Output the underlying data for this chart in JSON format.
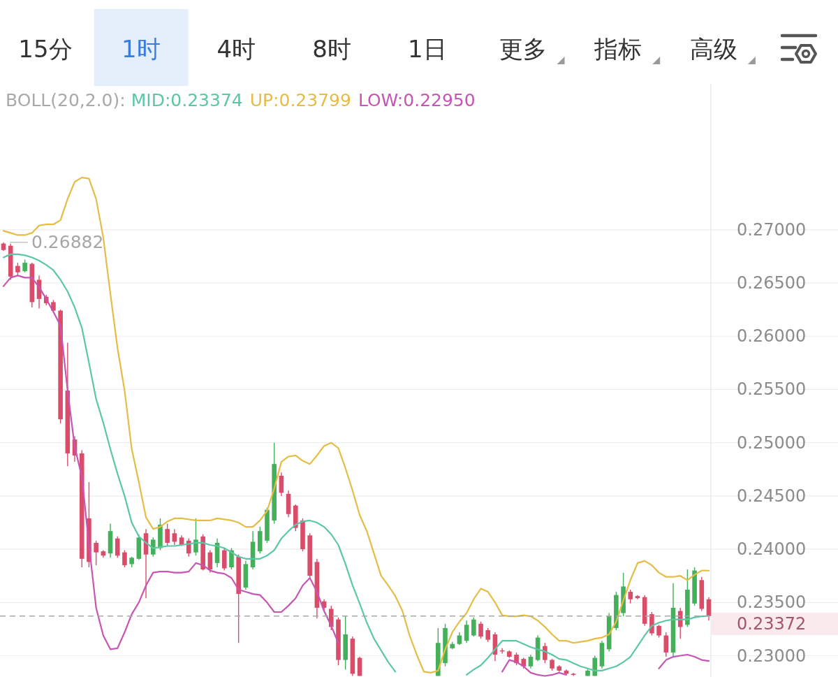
{
  "chart_data": {
    "type": "candlestick",
    "annotations": [
      "15分",
      "1时",
      "4时",
      "8时",
      "1日",
      "更多",
      "指标",
      "高级",
      "0.26882",
      "0.23372"
    ],
    "legend_title": "BOLL(20,2.0):",
    "legend": "top left",
    "grid": "y",
    "tick_labels": "y",
    "ylim": [
      0.228,
      0.2837
    ],
    "yticks": [
      {
        "value": 0.23,
        "label": "0.23000"
      },
      {
        "value": 0.235,
        "label": "0.23500"
      },
      {
        "value": 0.24,
        "label": "0.24000"
      },
      {
        "value": 0.245,
        "label": "0.24500"
      },
      {
        "value": 0.25,
        "label": "0.25000"
      },
      {
        "value": 0.255,
        "label": "0.25500"
      },
      {
        "value": 0.26,
        "label": "0.26000"
      },
      {
        "value": 0.265,
        "label": "0.26500"
      },
      {
        "value": 0.27,
        "label": "0.27000"
      }
    ],
    "ref_lines": [
      {
        "axis": "y",
        "value": 0.23372,
        "color": "#a8a8a8",
        "line_style": "dashed"
      }
    ],
    "categories": [
      null,
      null,
      null,
      null,
      null,
      null,
      null,
      null,
      null,
      null,
      null,
      null,
      null,
      null,
      null,
      null,
      null,
      null,
      null,
      null,
      null,
      null,
      null,
      null,
      null,
      null,
      null,
      null,
      null,
      null,
      null,
      null,
      null,
      null,
      null,
      null,
      null,
      null,
      null,
      null,
      null,
      null,
      null,
      null,
      null,
      null,
      null,
      null,
      null,
      null,
      null,
      null,
      null,
      null,
      null,
      null,
      null,
      null,
      null,
      null,
      null,
      null,
      null,
      null,
      null,
      null,
      null,
      null,
      null,
      null,
      null,
      null,
      null,
      null,
      null,
      null,
      null,
      null,
      null,
      null,
      null,
      null,
      null,
      null,
      null,
      null,
      null,
      null,
      null,
      null,
      null,
      null,
      null,
      null,
      null,
      null,
      null,
      null,
      null,
      null
    ],
    "ohlc": [
      [
        0.2687,
        0.26882,
        0.268,
        0.2681
      ],
      [
        0.2685,
        0.2687,
        0.2653,
        0.2656
      ],
      [
        0.2666,
        0.2669,
        0.2657,
        0.266
      ],
      [
        0.2661,
        0.2672,
        0.266,
        0.2669
      ],
      [
        0.2668,
        0.2669,
        0.2627,
        0.2632
      ],
      [
        0.2653,
        0.2657,
        0.2626,
        0.2635
      ],
      [
        0.2637,
        0.2639,
        0.2629,
        0.2631
      ],
      [
        0.2632,
        0.2634,
        0.2622,
        0.2624
      ],
      [
        0.2624,
        0.2625,
        0.2518,
        0.2522
      ],
      [
        0.2549,
        0.2594,
        0.2478,
        0.249
      ],
      [
        0.2503,
        0.2506,
        0.2482,
        0.2488
      ],
      [
        0.249,
        0.2493,
        0.2383,
        0.2391
      ],
      [
        0.2429,
        0.2463,
        0.2383,
        0.2388
      ],
      [
        0.2406,
        0.2408,
        0.2385,
        0.2397
      ],
      [
        0.2398,
        0.2399,
        0.2392,
        0.2394
      ],
      [
        0.2396,
        0.2424,
        0.2392,
        0.2417
      ],
      [
        0.241,
        0.2412,
        0.2392,
        0.2394
      ],
      [
        0.2397,
        0.2399,
        0.2383,
        0.2385
      ],
      [
        0.2386,
        0.2393,
        0.2383,
        0.2392
      ],
      [
        0.2391,
        0.2414,
        0.239,
        0.2411
      ],
      [
        0.2415,
        0.2419,
        0.2354,
        0.2395
      ],
      [
        0.2395,
        0.2411,
        0.2393,
        0.2409
      ],
      [
        0.2401,
        0.2429,
        0.2399,
        0.2423
      ],
      [
        0.2419,
        0.2424,
        0.2403,
        0.2406
      ],
      [
        0.2415,
        0.2419,
        0.2404,
        0.2407
      ],
      [
        0.2411,
        0.2413,
        0.2403,
        0.2404
      ],
      [
        0.2408,
        0.241,
        0.2393,
        0.2396
      ],
      [
        0.2397,
        0.2429,
        0.2394,
        0.2409
      ],
      [
        0.2412,
        0.2414,
        0.238,
        0.2381
      ],
      [
        0.2397,
        0.2399,
        0.2378,
        0.2381
      ],
      [
        0.2387,
        0.241,
        0.2383,
        0.2406
      ],
      [
        0.2399,
        0.2401,
        0.238,
        0.2382
      ],
      [
        0.2383,
        0.2401,
        0.2381,
        0.2399
      ],
      [
        0.2393,
        0.2395,
        0.2312,
        0.2358
      ],
      [
        0.2364,
        0.2389,
        0.2362,
        0.2386
      ],
      [
        0.2383,
        0.2417,
        0.2381,
        0.2407
      ],
      [
        0.2398,
        0.2421,
        0.2396,
        0.2417
      ],
      [
        0.2408,
        0.2439,
        0.2406,
        0.2437
      ],
      [
        0.2427,
        0.25,
        0.2424,
        0.248
      ],
      [
        0.2469,
        0.2472,
        0.245,
        0.2453
      ],
      [
        0.2452,
        0.2455,
        0.243,
        0.2433
      ],
      [
        0.2441,
        0.2442,
        0.2417,
        0.242
      ],
      [
        0.2427,
        0.2429,
        0.2398,
        0.24
      ],
      [
        0.2413,
        0.2415,
        0.2373,
        0.2375
      ],
      [
        0.2388,
        0.2391,
        0.2335,
        0.2345
      ],
      [
        0.2351,
        0.2353,
        0.2342,
        0.2345
      ],
      [
        0.2344,
        0.2347,
        0.2324,
        0.2327
      ],
      [
        0.2334,
        0.2336,
        0.2291,
        0.2296
      ],
      [
        0.2296,
        0.2337,
        0.2287,
        0.232
      ],
      [
        0.2316,
        0.2318,
        0.2281,
        0.2283
      ],
      [
        0.2298,
        0.2299,
        0.2281,
        0.2281
      ],
      null,
      null,
      null,
      null,
      null,
      null,
      null,
      null,
      null,
      null,
      [
        0.2281,
        0.2326,
        0.2281,
        0.2312
      ],
      [
        0.2293,
        0.233,
        0.229,
        0.2326
      ],
      [
        0.2307,
        0.2313,
        0.2306,
        0.2311
      ],
      [
        0.2311,
        0.2322,
        0.231,
        0.2319
      ],
      [
        0.2314,
        0.2333,
        0.2312,
        0.2329
      ],
      [
        0.2319,
        0.2336,
        0.2318,
        0.2334
      ],
      [
        0.233,
        0.2332,
        0.2316,
        0.2318
      ],
      [
        0.2324,
        0.2326,
        0.2313,
        0.2315
      ],
      [
        0.232,
        0.2322,
        0.2295,
        0.2301
      ],
      [
        0.2305,
        0.2307,
        0.2302,
        0.2304
      ],
      [
        0.2304,
        0.2305,
        0.2298,
        0.2299
      ],
      [
        0.2301,
        0.2303,
        0.2291,
        0.2293
      ],
      [
        0.2297,
        0.2298,
        0.2288,
        0.229
      ],
      [
        0.229,
        0.2301,
        0.2288,
        0.2299
      ],
      [
        0.2296,
        0.2319,
        0.2295,
        0.2317
      ],
      [
        0.2309,
        0.2312,
        0.2293,
        0.2296
      ],
      [
        0.2296,
        0.2297,
        0.2286,
        0.2288
      ],
      [
        0.229,
        0.2291,
        0.2285,
        0.2286
      ],
      [
        0.2286,
        0.2287,
        0.2282,
        0.2283
      ],
      [
        0.2283,
        0.2284,
        0.2281,
        0.2282
      ],
      null,
      [
        0.2281,
        0.2288,
        0.2281,
        0.2286
      ],
      [
        0.2281,
        0.23,
        0.2281,
        0.2298
      ],
      [
        0.229,
        0.2314,
        0.2288,
        0.2312
      ],
      [
        0.2306,
        0.234,
        0.2304,
        0.2337
      ],
      [
        0.2326,
        0.236,
        0.2324,
        0.2357
      ],
      [
        0.234,
        0.2378,
        0.2337,
        0.2365
      ],
      [
        0.236,
        0.2362,
        0.2349,
        0.2353
      ],
      [
        0.2356,
        0.2357,
        0.2353,
        0.2354
      ],
      [
        0.2355,
        0.2357,
        0.2328,
        0.233
      ],
      [
        0.2339,
        0.2341,
        0.2319,
        0.2321
      ],
      [
        0.2328,
        0.2329,
        0.2317,
        0.2319
      ],
      [
        0.2319,
        0.2322,
        0.2299,
        0.2303
      ],
      [
        0.2303,
        0.2368,
        0.2299,
        0.2345
      ],
      [
        0.2342,
        0.2345,
        0.2316,
        0.2327
      ],
      [
        0.2329,
        0.2381,
        0.2327,
        0.2362
      ],
      [
        0.2349,
        0.2383,
        0.2347,
        0.238
      ],
      [
        0.2371,
        0.2374,
        0.2342,
        0.2344
      ],
      [
        0.2353,
        0.2355,
        0.2333,
        0.23372
      ]
    ],
    "colors": [
      "#d94c6a",
      "#d94c6a",
      "#d94c6a",
      "#45b05a",
      "#d94c6a",
      "#d94c6a",
      "#d94c6a",
      "#d94c6a",
      "#d94c6a",
      "#d94c6a",
      "#d94c6a",
      "#d94c6a",
      "#d94c6a",
      "#d94c6a",
      "#d94c6a",
      "#45b05a",
      "#d94c6a",
      "#d94c6a",
      "#45b05a",
      "#45b05a",
      "#d94c6a",
      "#45b05a",
      "#45b05a",
      "#d94c6a",
      "#d94c6a",
      "#d94c6a",
      "#d94c6a",
      "#45b05a",
      "#d94c6a",
      "#d94c6a",
      "#45b05a",
      "#d94c6a",
      "#45b05a",
      "#d94c6a",
      "#45b05a",
      "#45b05a",
      "#45b05a",
      "#45b05a",
      "#45b05a",
      "#d94c6a",
      "#d94c6a",
      "#d94c6a",
      "#d94c6a",
      "#d94c6a",
      "#d94c6a",
      "#d94c6a",
      "#d94c6a",
      "#d94c6a",
      "#45b05a",
      "#d94c6a",
      "#d94c6a",
      null,
      null,
      null,
      null,
      null,
      null,
      null,
      null,
      null,
      null,
      "#45b05a",
      "#45b05a",
      "#45b05a",
      "#45b05a",
      "#45b05a",
      "#45b05a",
      "#d94c6a",
      "#d94c6a",
      "#d94c6a",
      "#d94c6a",
      "#d94c6a",
      "#d94c6a",
      "#d94c6a",
      "#45b05a",
      "#45b05a",
      "#d94c6a",
      "#d94c6a",
      "#d94c6a",
      "#d94c6a",
      "#d94c6a",
      null,
      "#45b05a",
      "#45b05a",
      "#45b05a",
      "#45b05a",
      "#45b05a",
      "#45b05a",
      "#d94c6a",
      "#d94c6a",
      "#d94c6a",
      "#d94c6a",
      "#d94c6a",
      "#d94c6a",
      "#45b05a",
      "#d94c6a",
      "#45b05a",
      "#45b05a",
      "#d94c6a",
      "#d94c6a"
    ],
    "series": [
      {
        "name": "MID:0.23374",
        "type": "line",
        "color": "#5cc7a7",
        "values": [
          0.2674,
          0.2677,
          0.2677,
          0.2676,
          0.2674,
          0.2671,
          0.2667,
          0.2662,
          0.2653,
          0.2642,
          0.2627,
          0.2608,
          0.2575,
          0.2541,
          0.2519,
          0.2494,
          0.2471,
          0.245,
          0.2425,
          0.2412,
          0.2406,
          0.2401,
          0.2402,
          0.2403,
          0.2403,
          0.2404,
          0.2405,
          0.2406,
          0.2406,
          0.2404,
          0.2403,
          0.2401,
          0.2397,
          0.2393,
          0.2391,
          0.2391,
          0.2391,
          0.2394,
          0.2399,
          0.241,
          0.2417,
          0.2423,
          0.2426,
          0.2427,
          0.2425,
          0.2421,
          0.2414,
          0.2404,
          0.2386,
          0.2366,
          0.2349,
          0.2331,
          0.2316,
          0.2305,
          0.2294,
          0.2285,
          null,
          null,
          null,
          null,
          null,
          null,
          null,
          null,
          null,
          0.2282,
          0.2287,
          0.2291,
          0.2298,
          0.2306,
          0.2314,
          0.2314,
          0.2314,
          0.2311,
          0.2308,
          0.2306,
          0.2304,
          0.2301,
          0.2297,
          0.2296,
          0.2293,
          0.229,
          0.2288,
          0.2286,
          0.2286,
          0.2288,
          0.229,
          0.2294,
          0.2299,
          0.2309,
          0.2319,
          0.2328,
          0.2331,
          0.2333,
          0.2334,
          0.2334,
          0.2334,
          0.2336,
          0.2337,
          0.23374
        ]
      },
      {
        "name": "UP:0.23799",
        "type": "line",
        "color": "#e5bd45",
        "values": [
          0.2699,
          0.2697,
          0.2695,
          0.2695,
          0.2697,
          0.2704,
          0.2705,
          0.2705,
          0.2709,
          0.2729,
          0.2745,
          0.2749,
          0.2748,
          0.2729,
          0.2693,
          0.264,
          0.2589,
          0.2549,
          0.2494,
          0.2463,
          0.243,
          0.2419,
          0.2421,
          0.2426,
          0.2429,
          0.2429,
          0.2428,
          0.2427,
          0.2427,
          0.2427,
          0.2429,
          0.2428,
          0.2427,
          0.2425,
          0.2421,
          0.2421,
          0.2427,
          0.2436,
          0.2457,
          0.2482,
          0.2487,
          0.2488,
          0.2483,
          0.248,
          0.2488,
          0.2497,
          0.25,
          0.2495,
          0.2476,
          0.2455,
          0.2432,
          0.2417,
          0.2396,
          0.2375,
          0.2366,
          0.2356,
          0.2342,
          0.2319,
          0.2301,
          0.2285,
          0.2284,
          0.2286,
          0.2306,
          0.2322,
          0.2332,
          0.234,
          0.2353,
          0.2363,
          0.236,
          0.235,
          0.2338,
          0.2337,
          0.2337,
          0.2338,
          0.2337,
          0.2333,
          0.2327,
          0.232,
          0.2314,
          0.2314,
          0.2312,
          0.2313,
          0.2314,
          0.2316,
          0.2317,
          0.232,
          0.2332,
          0.2352,
          0.2371,
          0.2387,
          0.2389,
          0.2385,
          0.2378,
          0.2374,
          0.2374,
          0.2375,
          0.2371,
          0.2376,
          0.238,
          0.23799
        ]
      },
      {
        "name": "LOW:0.22950",
        "type": "line",
        "color": "#c655b3",
        "values": [
          0.2647,
          0.2655,
          0.2657,
          0.2655,
          0.2655,
          0.2646,
          0.2635,
          0.2623,
          0.261,
          0.2549,
          0.2496,
          0.2468,
          0.2404,
          0.2345,
          0.2319,
          0.2306,
          0.2307,
          0.2322,
          0.2339,
          0.235,
          0.2366,
          0.2378,
          0.2379,
          0.2379,
          0.2378,
          0.2378,
          0.2379,
          0.2387,
          0.2385,
          0.238,
          0.2378,
          0.2377,
          0.2373,
          0.2362,
          0.236,
          0.2358,
          0.2357,
          0.235,
          0.2341,
          0.2341,
          0.2347,
          0.2354,
          0.2366,
          0.2373,
          0.236,
          0.2342,
          0.2328,
          0.2312,
          null,
          null,
          null,
          null,
          null,
          null,
          null,
          null,
          null,
          null,
          null,
          null,
          null,
          null,
          null,
          null,
          null,
          null,
          null,
          null,
          null,
          null,
          0.2285,
          0.2296,
          0.2294,
          0.229,
          0.2284,
          0.2282,
          0.2281,
          0.2282,
          0.2284,
          0.2282,
          null,
          null,
          null,
          null,
          null,
          null,
          null,
          null,
          null,
          null,
          null,
          null,
          0.2288,
          0.2296,
          0.2299,
          0.23,
          0.2301,
          0.2299,
          0.2296,
          0.2295
        ]
      }
    ]
  }
}
